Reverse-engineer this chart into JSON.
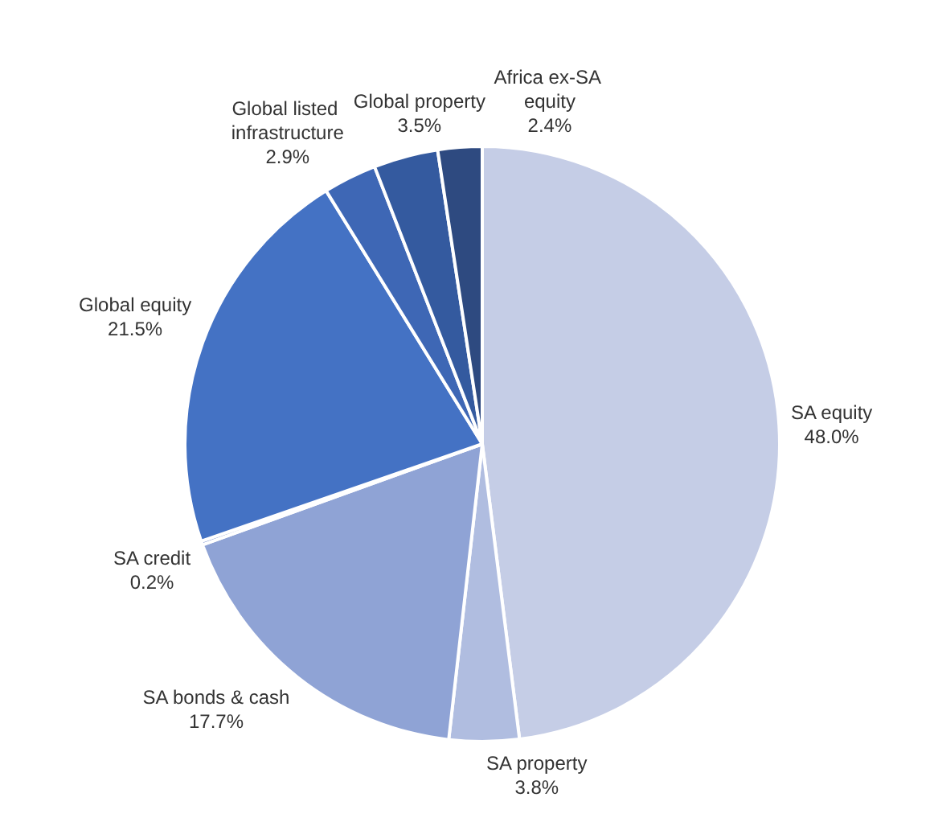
{
  "chart_data": {
    "type": "pie",
    "categories": [
      "SA equity",
      "SA property",
      "SA bonds & cash",
      "SA credit",
      "Global equity",
      "Global listed infrastructure",
      "Global property",
      "Africa ex-SA equity"
    ],
    "values": [
      48.0,
      3.8,
      17.7,
      0.2,
      21.5,
      2.9,
      3.5,
      2.4
    ],
    "value_labels": [
      "48.0%",
      "3.8%",
      "17.7%",
      "0.2%",
      "21.5%",
      "2.9%",
      "3.5%",
      "2.4%"
    ],
    "colors": [
      "#c5cde6",
      "#b0bde0",
      "#8fa3d5",
      "#7f95cf",
      "#4472c4",
      "#3e67b5",
      "#345a9f",
      "#2e4a80"
    ],
    "legend": false
  }
}
